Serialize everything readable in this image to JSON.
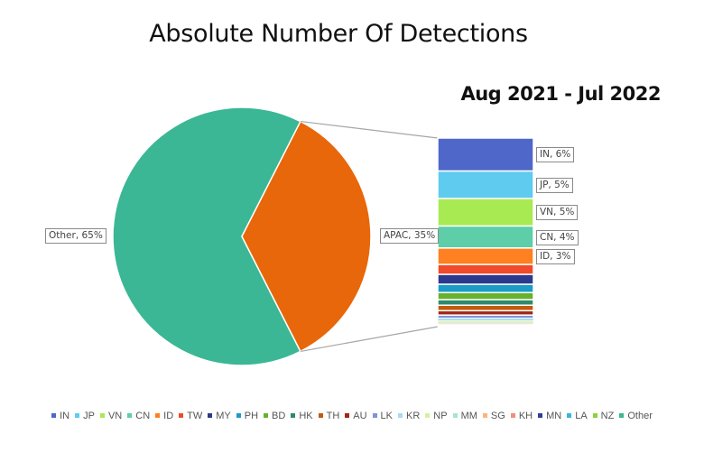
{
  "chart_data": {
    "type": "pie",
    "subtype": "bar-of-pie",
    "title": "Absolute Number Of Detections",
    "subtitle": "Aug 2021 - Jul 2022",
    "pie": {
      "categories": [
        "Other",
        "APAC"
      ],
      "values": [
        65,
        35
      ],
      "colors": [
        "#3bb795",
        "#e8670a"
      ],
      "labels": [
        "Other, 65%",
        "APAC, 35%"
      ]
    },
    "bar_breakdown": {
      "parent": "APAC",
      "categories": [
        "IN",
        "JP",
        "VN",
        "CN",
        "ID",
        "TW",
        "MY",
        "PH",
        "BD",
        "HK",
        "TH",
        "AU",
        "LK",
        "KR",
        "NP",
        "MM",
        "SG",
        "KH",
        "MN",
        "LA",
        "NZ"
      ],
      "values": [
        6,
        5,
        5,
        4,
        3,
        1.8,
        1.8,
        1.5,
        1.3,
        1.0,
        1.0,
        0.8,
        0.6,
        0.4,
        0.3,
        0.2,
        0.2,
        0.1,
        0.1,
        0.1,
        0.1
      ],
      "colors": [
        "#4e67c8",
        "#5ecbef",
        "#a7ea52",
        "#5dcea8",
        "#ff8021",
        "#f04a2a",
        "#2b3a8c",
        "#1a9cc7",
        "#67b22a",
        "#2f8a6b",
        "#c25a0e",
        "#a02814",
        "#7f93d8",
        "#a4ddf2",
        "#d3f1a4",
        "#a6e4cf",
        "#ffb27a",
        "#f58d78",
        "#2d3f9c",
        "#3ab4dd",
        "#8ad33b"
      ],
      "labeled": [
        {
          "category": "IN",
          "label": "IN, 6%"
        },
        {
          "category": "JP",
          "label": "JP, 5%"
        },
        {
          "category": "VN",
          "label": "VN, 5%"
        },
        {
          "category": "CN",
          "label": "CN, 4%"
        },
        {
          "category": "ID",
          "label": "ID, 3%"
        }
      ]
    },
    "legend": {
      "position": "bottom",
      "entries": [
        "IN",
        "JP",
        "VN",
        "CN",
        "ID",
        "TW",
        "MY",
        "PH",
        "BD",
        "HK",
        "TH",
        "AU",
        "LK",
        "KR",
        "NP",
        "MM",
        "SG",
        "KH",
        "MN",
        "LA",
        "NZ",
        "Other"
      ],
      "colors": [
        "#4e67c8",
        "#5ecbef",
        "#a7ea52",
        "#5dcea8",
        "#ff8021",
        "#f04a2a",
        "#2b3a8c",
        "#1a9cc7",
        "#67b22a",
        "#2f8a6b",
        "#c25a0e",
        "#a02814",
        "#7f93d8",
        "#a4ddf2",
        "#d3f1a4",
        "#a6e4cf",
        "#ffb27a",
        "#f58d78",
        "#2d3f9c",
        "#3ab4dd",
        "#8ad33b",
        "#3bb795"
      ]
    }
  }
}
